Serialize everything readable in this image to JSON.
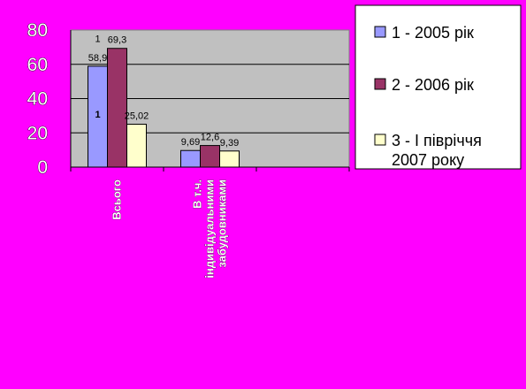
{
  "chart_data": {
    "type": "bar",
    "categories": [
      "Всього",
      "В т.ч. індивідуальними забудовниками",
      ""
    ],
    "category_lines": [
      [
        "Всього"
      ],
      [
        "В т.ч.",
        "індивідуальними",
        "забудовниками"
      ],
      []
    ],
    "series": [
      {
        "name": "1 - 2005 рік",
        "values": [
          58.9,
          9.69,
          null
        ],
        "labels": [
          "58,9",
          "9,69",
          ""
        ],
        "color": "#9999ff"
      },
      {
        "name": "2 - 2006 рік",
        "values": [
          69.3,
          12.6,
          null
        ],
        "labels": [
          "69,3",
          "12,6",
          ""
        ],
        "color": "#993366"
      },
      {
        "name": "3 -   I півріччя 2007 року",
        "values": [
          25.02,
          9.39,
          null
        ],
        "labels": [
          "25,02",
          "9,39",
          ""
        ],
        "color": "#ffffcc"
      }
    ],
    "legend_lines": [
      [
        "1 - 2005 рік"
      ],
      [
        "2 - 2006 рік"
      ],
      [
        "3 -   I півріччя",
        "2007 року"
      ]
    ],
    "extra_labels": [
      {
        "text": "1",
        "color": "#000000",
        "anchor": {
          "category": 0,
          "series": 0,
          "value": 73
        }
      },
      {
        "text": "1",
        "color": "#cc0000",
        "anchor": {
          "category": 0,
          "series": 0,
          "value": 29
        }
      }
    ],
    "yticks": [
      "0",
      "20",
      "40",
      "60",
      "80"
    ],
    "ylim": [
      0,
      80
    ],
    "grid": true,
    "plot_background": "#c0c0c0",
    "legend_position": "top-right",
    "title": "",
    "xlabel": "",
    "ylabel": ""
  }
}
